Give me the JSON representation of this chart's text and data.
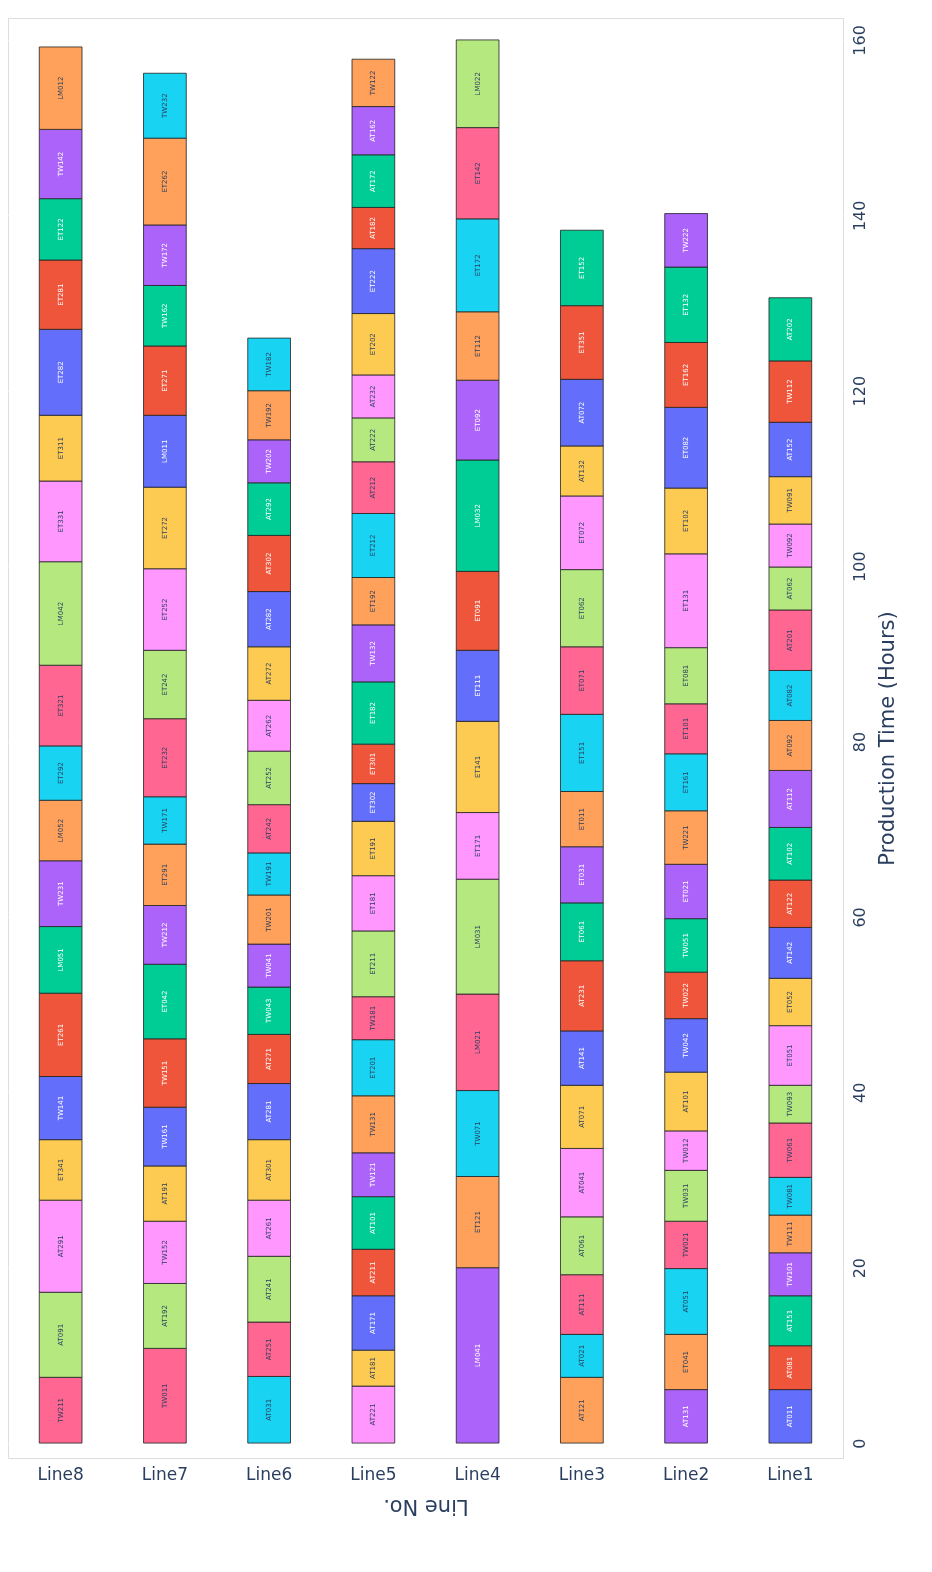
{
  "chart_data": {
    "type": "bar",
    "stacked": true,
    "xlabel": "Line No.",
    "ylabel": "Production Time (Hours)",
    "categories": [
      "Line8",
      "Line7",
      "Line6",
      "Line5",
      "Line4",
      "Line3",
      "Line2",
      "Line1"
    ],
    "ylim": [
      -1.7,
      162.5
    ],
    "yticks": [
      0,
      20,
      40,
      60,
      80,
      100,
      120,
      140,
      160
    ],
    "grid": "y",
    "series": [
      {
        "values": [
          7.5,
          10.8,
          7.6,
          6.5,
          20.0,
          7.5,
          6.1,
          6.1
        ],
        "value_labels": [
          "TW211",
          "TW011",
          "AT031",
          "AT221",
          "LM041",
          "AT121",
          "AT131",
          "AT011"
        ],
        "colors": [
          "#ff6692",
          "#ff6692",
          "#19d3f3",
          "#ff97ff",
          "#ab63fa",
          "#ffa15a",
          "#ab63fa",
          "#636efa"
        ]
      },
      {
        "values": [
          9.7,
          7.4,
          6.2,
          4.1,
          10.4,
          4.9,
          6.3,
          5.0
        ],
        "value_labels": [
          "AT091",
          "AT192",
          "AT251",
          "AT181",
          "ET121",
          "AT021",
          "ET041",
          "AT081"
        ],
        "colors": [
          "#b6e880",
          "#b6e880",
          "#ff6692",
          "#fecb52",
          "#ffa15a",
          "#19d3f3",
          "#ffa15a",
          "#ef553b"
        ]
      },
      {
        "values": [
          10.5,
          7.1,
          7.5,
          6.2,
          9.8,
          6.8,
          7.5,
          5.7
        ],
        "value_labels": [
          "AT291",
          "TW152",
          "AT241",
          "AT171",
          "TW071",
          "AT111",
          "AT051",
          "AT151"
        ],
        "colors": [
          "#ff97ff",
          "#ff97ff",
          "#b6e880",
          "#636efa",
          "#19d3f3",
          "#ff6692",
          "#19d3f3",
          "#00cc96"
        ]
      },
      {
        "values": [
          6.9,
          6.3,
          6.4,
          5.3,
          11.0,
          6.6,
          5.4,
          4.9
        ],
        "value_labels": [
          "ET341",
          "AT191",
          "AT261",
          "AT211",
          "LM021",
          "AT061",
          "TW021",
          "TW101"
        ],
        "colors": [
          "#fecb52",
          "#fecb52",
          "#ff97ff",
          "#ef553b",
          "#ff6692",
          "#b6e880",
          "#ff6692",
          "#ab63fa"
        ]
      },
      {
        "values": [
          7.2,
          6.7,
          6.9,
          6.0,
          13.1,
          7.8,
          5.8,
          4.3
        ],
        "value_labels": [
          "TW141",
          "TW161",
          "AT301",
          "AT101",
          "LM031",
          "AT041",
          "TW031",
          "TW111"
        ],
        "colors": [
          "#636efa",
          "#636efa",
          "#fecb52",
          "#00cc96",
          "#b6e880",
          "#ff97ff",
          "#b6e880",
          "#ffa15a"
        ]
      },
      {
        "values": [
          9.5,
          7.8,
          6.4,
          5.0,
          7.6,
          7.2,
          4.5,
          4.3
        ],
        "value_labels": [
          "ET261",
          "TW151",
          "AT281",
          "TW121",
          "ET171",
          "AT071",
          "TW012",
          "TW081"
        ],
        "colors": [
          "#ef553b",
          "#ef553b",
          "#636efa",
          "#ab63fa",
          "#ff97ff",
          "#fecb52",
          "#ff97ff",
          "#19d3f3"
        ]
      },
      {
        "values": [
          7.6,
          8.5,
          5.6,
          6.5,
          10.4,
          6.2,
          6.7,
          6.2
        ],
        "value_labels": [
          "LM051",
          "ET042",
          "AT271",
          "TW131",
          "ET141",
          "AT141",
          "AT101",
          "TW061"
        ],
        "colors": [
          "#00cc96",
          "#00cc96",
          "#ef553b",
          "#ffa15a",
          "#fecb52",
          "#636efa",
          "#fecb52",
          "#ff6692"
        ]
      },
      {
        "values": [
          7.5,
          6.7,
          5.4,
          6.4,
          8.1,
          8.0,
          6.1,
          4.3
        ],
        "value_labels": [
          "TW231",
          "TW212",
          "TW043",
          "ET201",
          "ET111",
          "AT231",
          "TW042",
          "TW093"
        ],
        "colors": [
          "#ab63fa",
          "#ab63fa",
          "#00cc96",
          "#19d3f3",
          "#636efa",
          "#ef553b",
          "#636efa",
          "#b6e880"
        ]
      },
      {
        "values": [
          6.9,
          7.0,
          4.9,
          4.9,
          9.0,
          6.6,
          5.3,
          6.8
        ],
        "value_labels": [
          "LM052",
          "ET291",
          "TW041",
          "TW181",
          "ET091",
          "ET061",
          "TW022",
          "ET051"
        ],
        "colors": [
          "#ffa15a",
          "#ffa15a",
          "#ab63fa",
          "#ff6692",
          "#ef553b",
          "#00cc96",
          "#ef553b",
          "#ff97ff"
        ]
      },
      {
        "values": [
          6.2,
          5.4,
          5.6,
          7.5,
          12.7,
          6.4,
          6.1,
          5.4
        ],
        "value_labels": [
          "ET292",
          "TW171",
          "TW201",
          "ET211",
          "LM032",
          "ET031",
          "TW051",
          "ET052"
        ],
        "colors": [
          "#19d3f3",
          "#19d3f3",
          "#ffa15a",
          "#b6e880",
          "#00cc96",
          "#ab63fa",
          "#00cc96",
          "#fecb52"
        ]
      },
      {
        "values": [
          9.2,
          8.9,
          4.8,
          6.3,
          9.1,
          6.3,
          6.2,
          5.8
        ],
        "value_labels": [
          "ET321",
          "ET232",
          "TW191",
          "ET181",
          "ET092",
          "ET011",
          "ET021",
          "AT142"
        ],
        "colors": [
          "#ff6692",
          "#ff6692",
          "#19d3f3",
          "#ff97ff",
          "#ab63fa",
          "#ffa15a",
          "#ab63fa",
          "#636efa"
        ]
      },
      {
        "values": [
          11.8,
          7.8,
          5.5,
          6.2,
          7.8,
          8.8,
          6.1,
          5.4
        ],
        "value_labels": [
          "LM042",
          "ET242",
          "AT242",
          "ET191",
          "ET112",
          "ET151",
          "TW221",
          "AT122"
        ],
        "colors": [
          "#b6e880",
          "#b6e880",
          "#ff6692",
          "#fecb52",
          "#ffa15a",
          "#19d3f3",
          "#ffa15a",
          "#ef553b"
        ]
      },
      {
        "values": [
          9.2,
          9.3,
          6.1,
          4.3,
          10.6,
          7.7,
          6.5,
          6.0
        ],
        "value_labels": [
          "ET331",
          "ET252",
          "AT252",
          "ET302",
          "ET172",
          "ET071",
          "ET161",
          "AT102"
        ],
        "colors": [
          "#ff97ff",
          "#ff97ff",
          "#b6e880",
          "#636efa",
          "#19d3f3",
          "#ff6692",
          "#19d3f3",
          "#00cc96"
        ]
      },
      {
        "values": [
          7.5,
          9.3,
          5.8,
          4.5,
          10.4,
          8.8,
          5.7,
          6.5
        ],
        "value_labels": [
          "ET311",
          "ET272",
          "AT262",
          "ET301",
          "ET142",
          "ET062",
          "ET101",
          "AT112"
        ],
        "colors": [
          "#fecb52",
          "#fecb52",
          "#ff97ff",
          "#ef553b",
          "#ff6692",
          "#b6e880",
          "#ff6692",
          "#ab63fa"
        ]
      },
      {
        "values": [
          9.8,
          8.2,
          6.1,
          7.1,
          10.0,
          8.4,
          6.4,
          5.7
        ],
        "value_labels": [
          "ET282",
          "LM011",
          "AT272",
          "ET182",
          "LM022",
          "ET072",
          "ET081",
          "AT092"
        ],
        "colors": [
          "#636efa",
          "#636efa",
          "#fecb52",
          "#00cc96",
          "#b6e880",
          "#ff97ff",
          "#b6e880",
          "#ffa15a"
        ]
      },
      {
        "values": [
          7.9,
          7.9,
          6.3,
          6.5,
          null,
          5.7,
          10.7,
          5.7
        ],
        "value_labels": [
          "ET281",
          "ET271",
          "AT282",
          "TW132",
          null,
          "AT132",
          "ET131",
          "AT082"
        ],
        "colors": [
          "#ef553b",
          "#ef553b",
          "#636efa",
          "#ab63fa",
          null,
          "#fecb52",
          "#ff97ff",
          "#19d3f3"
        ]
      },
      {
        "values": [
          7.0,
          6.9,
          6.4,
          5.4,
          null,
          7.6,
          7.5,
          6.9
        ],
        "value_labels": [
          "ET122",
          "TW162",
          "AT302",
          "ET192",
          null,
          "AT072",
          "ET102",
          "AT201"
        ],
        "colors": [
          "#00cc96",
          "#00cc96",
          "#ef553b",
          "#ffa15a",
          null,
          "#636efa",
          "#fecb52",
          "#ff6692"
        ]
      },
      {
        "values": [
          7.9,
          6.9,
          6.0,
          7.3,
          null,
          8.4,
          9.2,
          4.9
        ],
        "value_labels": [
          "TW142",
          "TW172",
          "AT292",
          "ET212",
          null,
          "ET351",
          "ET082",
          "AT062"
        ],
        "colors": [
          "#ab63fa",
          "#ab63fa",
          "#00cc96",
          "#19d3f3",
          null,
          "#ef553b",
          "#636efa",
          "#b6e880"
        ]
      },
      {
        "values": [
          9.4,
          9.9,
          4.9,
          5.9,
          null,
          8.6,
          7.4,
          4.9
        ],
        "value_labels": [
          "LM012",
          "ET262",
          "TW202",
          "AT212",
          null,
          "ET152",
          "ET162",
          "TW092"
        ],
        "colors": [
          "#ffa15a",
          "#ffa15a",
          "#ab63fa",
          "#ff6692",
          null,
          "#00cc96",
          "#ef553b",
          "#ff97ff"
        ]
      },
      {
        "values": [
          null,
          7.4,
          5.6,
          5.0,
          null,
          null,
          8.6,
          5.4
        ],
        "value_labels": [
          null,
          "TW232",
          "TW192",
          "AT222",
          null,
          null,
          "ET132",
          "TW091"
        ],
        "colors": [
          null,
          "#19d3f3",
          "#ffa15a",
          "#b6e880",
          null,
          null,
          "#00cc96",
          "#fecb52"
        ]
      },
      {
        "values": [
          null,
          null,
          6.0,
          4.9,
          null,
          null,
          6.1,
          6.2
        ],
        "value_labels": [
          null,
          null,
          "TW182",
          "AT232",
          null,
          null,
          "TW222",
          "AT152"
        ],
        "colors": [
          null,
          null,
          "#19d3f3",
          "#ff97ff",
          null,
          null,
          "#ab63fa",
          "#636efa"
        ]
      },
      {
        "values": [
          null,
          null,
          null,
          7.0,
          null,
          null,
          null,
          7.0
        ],
        "value_labels": [
          null,
          null,
          null,
          "ET202",
          null,
          null,
          null,
          "TW112"
        ],
        "colors": [
          null,
          null,
          null,
          "#fecb52",
          null,
          null,
          null,
          "#ef553b"
        ]
      },
      {
        "values": [
          null,
          null,
          null,
          7.4,
          null,
          null,
          null,
          7.2
        ],
        "value_labels": [
          null,
          null,
          null,
          "ET222",
          null,
          null,
          null,
          "AT202"
        ],
        "colors": [
          null,
          null,
          null,
          "#636efa",
          null,
          null,
          null,
          "#00cc96"
        ]
      },
      {
        "values": [
          null,
          null,
          null,
          4.7,
          null,
          null,
          null,
          null
        ],
        "value_labels": [
          null,
          null,
          null,
          "AT182",
          null,
          null,
          null,
          null
        ],
        "colors": [
          null,
          null,
          null,
          "#ef553b",
          null,
          null,
          null,
          null
        ]
      },
      {
        "values": [
          null,
          null,
          null,
          6.0,
          null,
          null,
          null,
          null
        ],
        "value_labels": [
          null,
          null,
          null,
          "AT172",
          null,
          null,
          null,
          null
        ],
        "colors": [
          null,
          null,
          null,
          "#00cc96",
          null,
          null,
          null,
          null
        ]
      },
      {
        "values": [
          null,
          null,
          null,
          5.5,
          null,
          null,
          null,
          null
        ],
        "value_labels": [
          null,
          null,
          null,
          "AT162",
          null,
          null,
          null,
          null
        ],
        "colors": [
          null,
          null,
          null,
          "#ab63fa",
          null,
          null,
          null,
          null
        ]
      },
      {
        "values": [
          null,
          null,
          null,
          5.4,
          null,
          null,
          null,
          null
        ],
        "value_labels": [
          null,
          null,
          null,
          "TW122",
          null,
          null,
          null,
          null
        ],
        "colors": [
          null,
          null,
          null,
          "#ffa15a",
          null,
          null,
          null,
          null
        ]
      }
    ]
  }
}
